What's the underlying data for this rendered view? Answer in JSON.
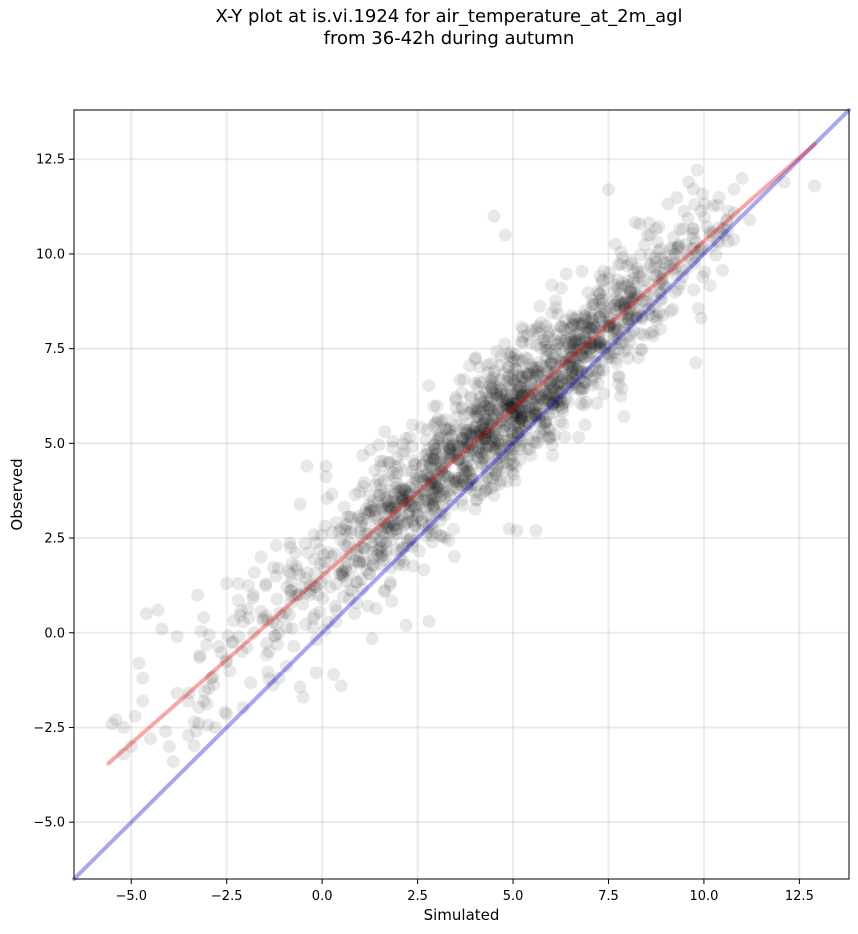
{
  "chart_data": {
    "type": "scatter",
    "title": "X-Y plot at is.vi.1924 for air_temperature_at_2m_agl",
    "subtitle": "from 36-42h during autumn",
    "xlabel": "Simulated",
    "ylabel": "Observed",
    "xlim": [
      -6.5,
      13.8
    ],
    "ylim": [
      -6.5,
      13.8
    ],
    "xticks": [
      -5.0,
      -2.5,
      0.0,
      2.5,
      5.0,
      7.5,
      10.0,
      12.5
    ],
    "yticks": [
      -5.0,
      -2.5,
      0.0,
      2.5,
      5.0,
      7.5,
      10.0,
      12.5
    ],
    "xtick_labels": [
      "−5.0",
      "−2.5",
      "0.0",
      "2.5",
      "5.0",
      "7.5",
      "10.0",
      "12.5"
    ],
    "ytick_labels": [
      "−5.0",
      "−2.5",
      "0.0",
      "2.5",
      "5.0",
      "7.5",
      "10.0",
      "12.5"
    ],
    "grid": true,
    "colors": {
      "points": "#000000",
      "identity_line": "#0000dd",
      "fit_line": "#ee0000"
    },
    "lines": [
      {
        "kind": "identity",
        "x": [
          -6.5,
          13.8
        ],
        "y": [
          -6.5,
          13.8
        ]
      },
      {
        "kind": "regression",
        "x": [
          -5.6,
          12.9
        ],
        "y": [
          -3.45,
          12.9
        ]
      }
    ],
    "point_cloud": {
      "n_approx": 1800,
      "fit_slope": 0.88,
      "fit_intercept": 1.5,
      "core_x_range": [
        -1.0,
        10.0
      ],
      "outliers": [
        [
          -5.5,
          -2.4
        ],
        [
          -5.4,
          -2.3
        ],
        [
          -5.2,
          -2.5
        ],
        [
          -5.2,
          -3.2
        ],
        [
          -5.0,
          -3.0
        ],
        [
          -4.9,
          -2.2
        ],
        [
          -4.8,
          -0.8
        ],
        [
          -4.7,
          -1.2
        ],
        [
          -4.7,
          -1.8
        ],
        [
          -4.6,
          0.5
        ],
        [
          -4.5,
          -2.8
        ],
        [
          -4.3,
          0.6
        ],
        [
          -4.2,
          0.1
        ],
        [
          -4.1,
          -2.6
        ],
        [
          -4.0,
          -3.0
        ],
        [
          -3.9,
          -3.4
        ],
        [
          -3.8,
          -1.6
        ],
        [
          -3.8,
          -0.1
        ],
        [
          -3.5,
          -1.8
        ],
        [
          -3.3,
          -2.6
        ],
        [
          -3.1,
          0.4
        ],
        [
          -3.2,
          -0.6
        ],
        [
          -2.9,
          -1.2
        ],
        [
          -2.8,
          -2.5
        ],
        [
          -2.5,
          1.3
        ],
        [
          -2.2,
          1.3
        ],
        [
          -2.1,
          -0.5
        ],
        [
          -1.8,
          1.0
        ],
        [
          -1.6,
          2.0
        ],
        [
          -1.2,
          2.3
        ],
        [
          -0.4,
          4.4
        ],
        [
          0.1,
          4.4
        ],
        [
          0.3,
          -1.1
        ],
        [
          0.5,
          -1.4
        ],
        [
          -0.5,
          -1.7
        ],
        [
          4.5,
          11.0
        ],
        [
          4.8,
          10.5
        ],
        [
          7.5,
          11.7
        ],
        [
          9.6,
          11.9
        ],
        [
          11.0,
          12.0
        ],
        [
          12.1,
          11.9
        ],
        [
          12.9,
          11.8
        ],
        [
          5.1,
          2.7
        ],
        [
          5.6,
          2.7
        ],
        [
          2.2,
          0.2
        ],
        [
          2.8,
          0.3
        ],
        [
          10.6,
          10.9
        ],
        [
          11.2,
          10.9
        ]
      ]
    }
  }
}
